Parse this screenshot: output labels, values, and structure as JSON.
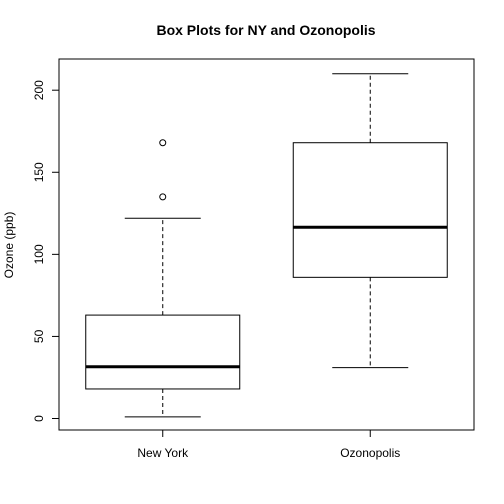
{
  "chart_data": {
    "type": "boxplot",
    "title": "Box Plots for NY and Ozonopolis",
    "xlabel": "",
    "ylabel": "Ozone (ppb)",
    "ylim": [
      -7,
      219
    ],
    "yticks": [
      0,
      50,
      100,
      150,
      200
    ],
    "grid": false,
    "categories": [
      "New York",
      "Ozonopolis"
    ],
    "boxes": [
      {
        "category": "New York",
        "min": 1,
        "q1": 18,
        "median": 31.5,
        "q3": 63,
        "max": 122,
        "outliers": [
          135,
          168
        ]
      },
      {
        "category": "Ozonopolis",
        "min": 31,
        "q1": 86,
        "median": 116.5,
        "q3": 168,
        "max": 210,
        "outliers": []
      }
    ]
  }
}
